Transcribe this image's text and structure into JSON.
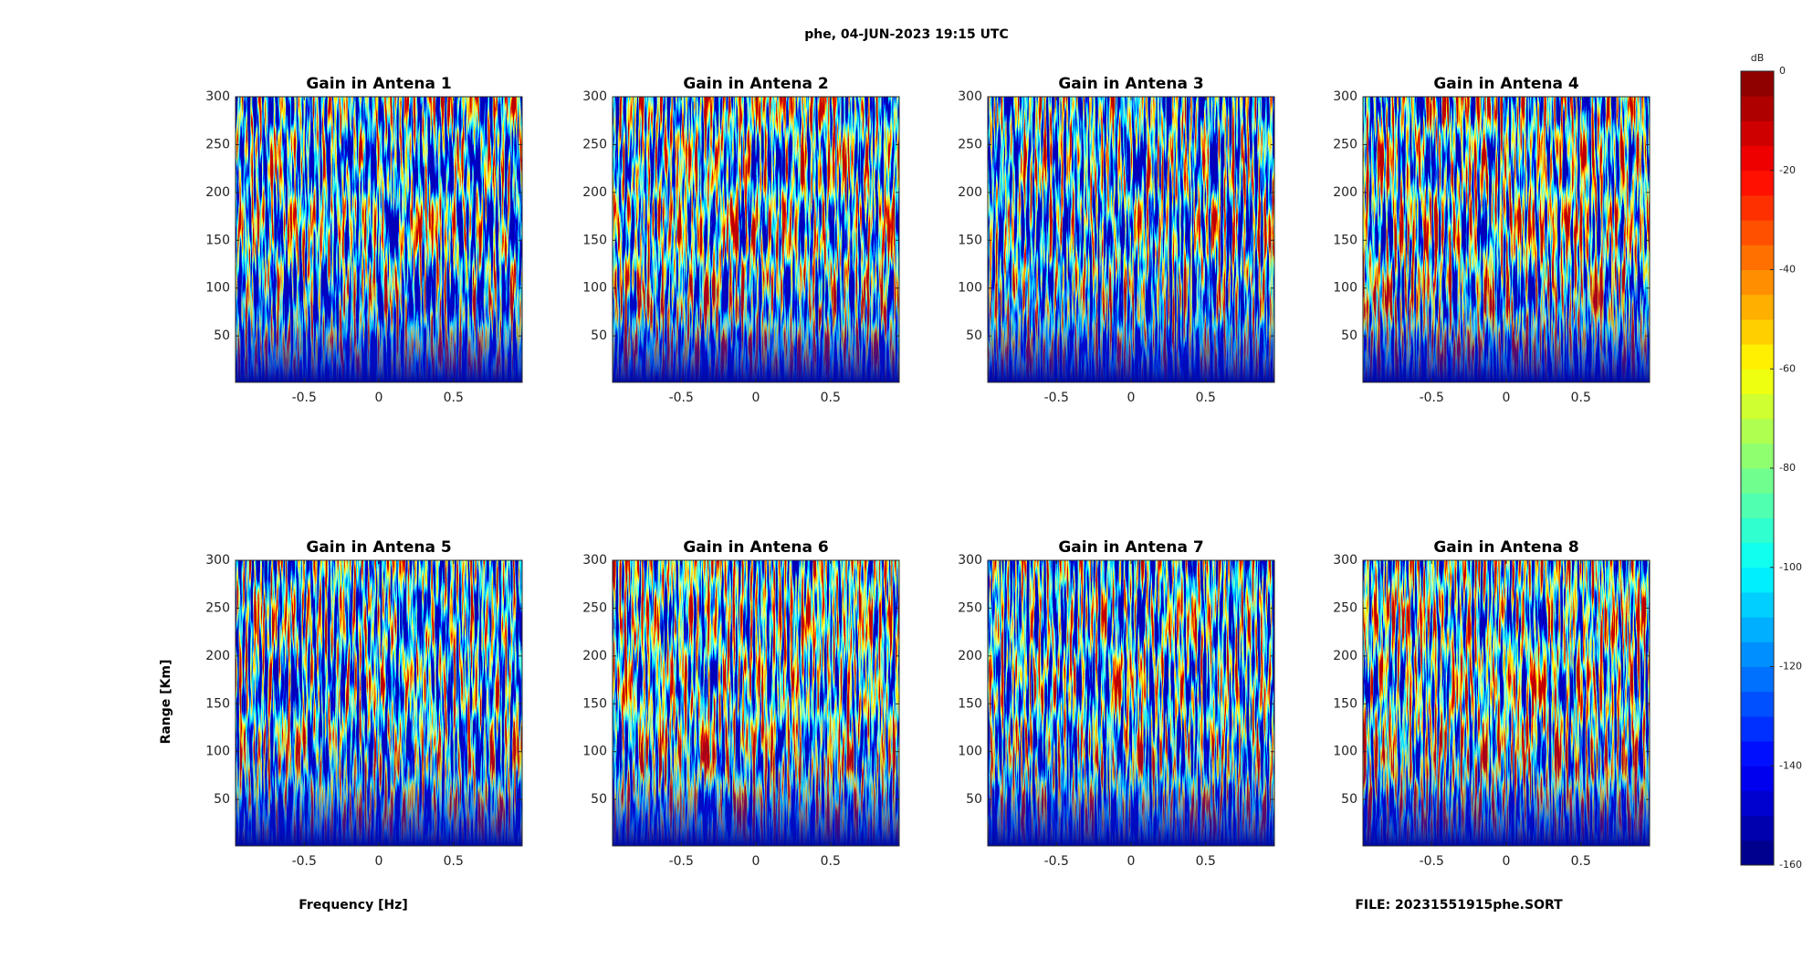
{
  "title": "phe, 04-JUN-2023 19:15 UTC",
  "xlabel": "Frequency [Hz]",
  "ylabel": "Range [Km]",
  "file": "FILE: 20231551915phe.SORT",
  "colorbar": {
    "label": "dB",
    "clim": [
      -160,
      0
    ],
    "ticks": [
      0,
      -20,
      -40,
      -60,
      -80,
      -100,
      -120,
      -140,
      -160
    ],
    "colormap": "jet",
    "levels": 32
  },
  "chart_data": [
    {
      "type": "heatmap",
      "title": "Gain in Antena 1",
      "xlim": [
        -0.96,
        0.96
      ],
      "ylim": [
        1.5,
        300
      ],
      "xticks": [
        -0.5,
        0,
        0.5
      ],
      "yticks": [
        50,
        100,
        150,
        200,
        250,
        300
      ]
    },
    {
      "type": "heatmap",
      "title": "Gain in Antena 2",
      "xlim": [
        -0.96,
        0.96
      ],
      "ylim": [
        1.5,
        300
      ],
      "xticks": [
        -0.5,
        0,
        0.5
      ],
      "yticks": [
        50,
        100,
        150,
        200,
        250,
        300
      ]
    },
    {
      "type": "heatmap",
      "title": "Gain in Antena 3",
      "xlim": [
        -0.96,
        0.96
      ],
      "ylim": [
        1.5,
        300
      ],
      "xticks": [
        -0.5,
        0,
        0.5
      ],
      "yticks": [
        50,
        100,
        150,
        200,
        250,
        300
      ]
    },
    {
      "type": "heatmap",
      "title": "Gain in Antena 4",
      "xlim": [
        -0.96,
        0.96
      ],
      "ylim": [
        1.5,
        300
      ],
      "xticks": [
        -0.5,
        0,
        0.5
      ],
      "yticks": [
        50,
        100,
        150,
        200,
        250,
        300
      ]
    },
    {
      "type": "heatmap",
      "title": "Gain in Antena 5",
      "xlim": [
        -0.96,
        0.96
      ],
      "ylim": [
        1.5,
        300
      ],
      "xticks": [
        -0.5,
        0,
        0.5
      ],
      "yticks": [
        50,
        100,
        150,
        200,
        250,
        300
      ]
    },
    {
      "type": "heatmap",
      "title": "Gain in Antena 6",
      "xlim": [
        -0.96,
        0.96
      ],
      "ylim": [
        1.5,
        300
      ],
      "xticks": [
        -0.5,
        0,
        0.5
      ],
      "yticks": [
        50,
        100,
        150,
        200,
        250,
        300
      ]
    },
    {
      "type": "heatmap",
      "title": "Gain in Antena 7",
      "xlim": [
        -0.96,
        0.96
      ],
      "ylim": [
        1.5,
        300
      ],
      "xticks": [
        -0.5,
        0,
        0.5
      ],
      "yticks": [
        50,
        100,
        150,
        200,
        250,
        300
      ]
    },
    {
      "type": "heatmap",
      "title": "Gain in Antena 8",
      "xlim": [
        -0.96,
        0.96
      ],
      "ylim": [
        1.5,
        300
      ],
      "xticks": [
        -0.5,
        0,
        0.5
      ],
      "yticks": [
        50,
        100,
        150,
        200,
        250,
        300
      ]
    }
  ]
}
